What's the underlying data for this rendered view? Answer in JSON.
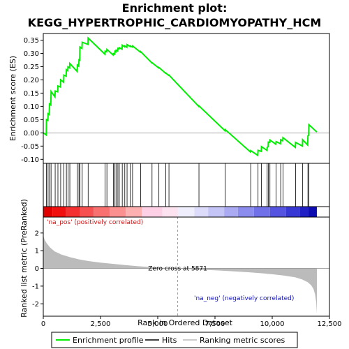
{
  "chart_data": {
    "type": "line",
    "title_line1": "Enrichment plot:",
    "title_line2": "KEGG_HYPERTROPHIC_CARDIOMYOPATHY_HCM",
    "ylabel_top": "Enrichment score (ES)",
    "ylabel_bottom": "Ranked list metric (PreRanked)",
    "xlabel": "Rank in Ordered Dataset",
    "xlim": [
      0,
      12500
    ],
    "x_ticks": [
      0,
      2500,
      5000,
      7500,
      10000,
      12500
    ],
    "x_tick_labels": [
      "0",
      "2,500",
      "5,000",
      "7,500",
      "10,000",
      "12,500"
    ],
    "es_ylim": [
      -0.115,
      0.375
    ],
    "es_ticks": [
      -0.1,
      -0.05,
      0.0,
      0.05,
      0.1,
      0.15,
      0.2,
      0.25,
      0.3,
      0.35
    ],
    "es_tick_labels": [
      "-0.10",
      "-0.05",
      "0.00",
      "0.05",
      "0.10",
      "0.15",
      "0.20",
      "0.25",
      "0.30",
      "0.35"
    ],
    "metric_ylim": [
      -2.7,
      2.9
    ],
    "metric_ticks": [
      -2,
      -1,
      0,
      1,
      2
    ],
    "metric_tick_labels": [
      "-2",
      "-1",
      "0",
      "1",
      "2"
    ],
    "zero_cross_rank": 5871,
    "zero_cross_label": "Zero cross at 5871",
    "pos_label": "'na_pos' (positively correlated)",
    "neg_label": "'na_neg' (negatively correlated)",
    "n_genes": 11950,
    "hits": [
      140,
      210,
      270,
      340,
      520,
      640,
      760,
      900,
      1010,
      1080,
      1160,
      1490,
      1560,
      1600,
      1700,
      1960,
      2700,
      2780,
      3060,
      3130,
      3180,
      3260,
      3320,
      3450,
      3560,
      3660,
      3800,
      3900,
      4250,
      4750,
      5050,
      5350,
      5490,
      6800,
      7950,
      9060,
      9380,
      9530,
      9780,
      9830,
      9900,
      10170,
      10370,
      10470,
      11020,
      11330,
      11560,
      11600
    ],
    "es_points": [
      [
        0,
        0.0
      ],
      [
        130,
        -0.008
      ],
      [
        140,
        0.05
      ],
      [
        200,
        0.047
      ],
      [
        210,
        0.072
      ],
      [
        260,
        0.069
      ],
      [
        270,
        0.109
      ],
      [
        330,
        0.105
      ],
      [
        340,
        0.156
      ],
      [
        510,
        0.136
      ],
      [
        520,
        0.158
      ],
      [
        630,
        0.155
      ],
      [
        640,
        0.177
      ],
      [
        750,
        0.173
      ],
      [
        760,
        0.2
      ],
      [
        890,
        0.191
      ],
      [
        900,
        0.218
      ],
      [
        1000,
        0.214
      ],
      [
        1010,
        0.238
      ],
      [
        1070,
        0.234
      ],
      [
        1080,
        0.249
      ],
      [
        1150,
        0.245
      ],
      [
        1160,
        0.262
      ],
      [
        1480,
        0.232
      ],
      [
        1490,
        0.256
      ],
      [
        1550,
        0.252
      ],
      [
        1560,
        0.276
      ],
      [
        1590,
        0.275
      ],
      [
        1600,
        0.324
      ],
      [
        1690,
        0.319
      ],
      [
        1700,
        0.342
      ],
      [
        1950,
        0.334
      ],
      [
        1960,
        0.358
      ],
      [
        2690,
        0.297
      ],
      [
        2700,
        0.308
      ],
      [
        2770,
        0.306
      ],
      [
        2780,
        0.315
      ],
      [
        3050,
        0.294
      ],
      [
        3060,
        0.299
      ],
      [
        3120,
        0.297
      ],
      [
        3130,
        0.308
      ],
      [
        3170,
        0.306
      ],
      [
        3180,
        0.312
      ],
      [
        3250,
        0.309
      ],
      [
        3260,
        0.319
      ],
      [
        3310,
        0.317
      ],
      [
        3320,
        0.321
      ],
      [
        3440,
        0.316
      ],
      [
        3450,
        0.331
      ],
      [
        3550,
        0.325
      ],
      [
        3560,
        0.328
      ],
      [
        3650,
        0.323
      ],
      [
        3660,
        0.333
      ],
      [
        3790,
        0.326
      ],
      [
        3800,
        0.328
      ],
      [
        3890,
        0.324
      ],
      [
        3900,
        0.328
      ],
      [
        4240,
        0.305
      ],
      [
        4250,
        0.307
      ],
      [
        4740,
        0.264
      ],
      [
        4750,
        0.265
      ],
      [
        5040,
        0.245
      ],
      [
        5050,
        0.247
      ],
      [
        5340,
        0.225
      ],
      [
        5350,
        0.226
      ],
      [
        5480,
        0.217
      ],
      [
        5490,
        0.218
      ],
      [
        6790,
        0.1
      ],
      [
        6800,
        0.102
      ],
      [
        7940,
        0.008
      ],
      [
        7950,
        0.012
      ],
      [
        9050,
        -0.072
      ],
      [
        9060,
        -0.067
      ],
      [
        9370,
        -0.085
      ],
      [
        9380,
        -0.066
      ],
      [
        9520,
        -0.07
      ],
      [
        9530,
        -0.052
      ],
      [
        9770,
        -0.066
      ],
      [
        9780,
        -0.055
      ],
      [
        9820,
        -0.052
      ],
      [
        9830,
        -0.035
      ],
      [
        9890,
        -0.036
      ],
      [
        9900,
        -0.027
      ],
      [
        10160,
        -0.043
      ],
      [
        10170,
        -0.033
      ],
      [
        10360,
        -0.041
      ],
      [
        10370,
        -0.026
      ],
      [
        10460,
        -0.03
      ],
      [
        10470,
        -0.018
      ],
      [
        11010,
        -0.055
      ],
      [
        11020,
        -0.036
      ],
      [
        11320,
        -0.05
      ],
      [
        11330,
        -0.026
      ],
      [
        11550,
        -0.046
      ],
      [
        11560,
        -0.011
      ],
      [
        11590,
        -0.009
      ],
      [
        11600,
        0.031
      ],
      [
        11950,
        0.003
      ]
    ],
    "metric_points": [
      [
        0,
        1.85
      ],
      [
        60,
        1.62
      ],
      [
        150,
        1.42
      ],
      [
        300,
        1.18
      ],
      [
        500,
        0.96
      ],
      [
        800,
        0.78
      ],
      [
        1200,
        0.62
      ],
      [
        1600,
        0.5
      ],
      [
        2000,
        0.41
      ],
      [
        2500,
        0.33
      ],
      [
        3000,
        0.26
      ],
      [
        3500,
        0.2
      ],
      [
        4000,
        0.14
      ],
      [
        4500,
        0.09
      ],
      [
        5000,
        0.05
      ],
      [
        5871,
        0.0
      ],
      [
        6500,
        -0.05
      ],
      [
        7000,
        -0.08
      ],
      [
        7500,
        -0.11
      ],
      [
        8000,
        -0.14
      ],
      [
        8500,
        -0.18
      ],
      [
        9000,
        -0.22
      ],
      [
        9500,
        -0.27
      ],
      [
        10000,
        -0.33
      ],
      [
        10500,
        -0.4
      ],
      [
        11000,
        -0.5
      ],
      [
        11300,
        -0.62
      ],
      [
        11550,
        -0.78
      ],
      [
        11700,
        -0.95
      ],
      [
        11800,
        -1.15
      ],
      [
        11870,
        -1.45
      ],
      [
        11920,
        -1.9
      ],
      [
        11950,
        -2.55
      ]
    ],
    "heat_segments": [
      {
        "from": 0,
        "to": 400,
        "color": "#e00000"
      },
      {
        "from": 400,
        "to": 1000,
        "color": "#f01010"
      },
      {
        "from": 1000,
        "to": 1600,
        "color": "#f43030"
      },
      {
        "from": 1600,
        "to": 2200,
        "color": "#f65050"
      },
      {
        "from": 2200,
        "to": 2900,
        "color": "#f87070"
      },
      {
        "from": 2900,
        "to": 3600,
        "color": "#fa9090"
      },
      {
        "from": 3600,
        "to": 4300,
        "color": "#fcb0b0"
      },
      {
        "from": 4300,
        "to": 5200,
        "color": "#fdd0e6"
      },
      {
        "from": 5200,
        "to": 5871,
        "color": "#fde2f0"
      },
      {
        "from": 5871,
        "to": 6600,
        "color": "#eeeefc"
      },
      {
        "from": 6600,
        "to": 7200,
        "color": "#dcdcfa"
      },
      {
        "from": 7200,
        "to": 7900,
        "color": "#c4c4f6"
      },
      {
        "from": 7900,
        "to": 8500,
        "color": "#aaaaf2"
      },
      {
        "from": 8500,
        "to": 9200,
        "color": "#8c8cee"
      },
      {
        "from": 9200,
        "to": 9900,
        "color": "#7070e8"
      },
      {
        "from": 9900,
        "to": 10600,
        "color": "#5454e0"
      },
      {
        "from": 10600,
        "to": 11200,
        "color": "#3838d4"
      },
      {
        "from": 11200,
        "to": 11600,
        "color": "#2020c4"
      },
      {
        "from": 11600,
        "to": 11950,
        "color": "#0c0cb0"
      }
    ],
    "legend": [
      {
        "label": "Enrichment profile",
        "color": "#00ee00"
      },
      {
        "label": "Hits",
        "color": "#000000"
      },
      {
        "label": "Ranking metric scores",
        "color": "#bbbbbb"
      }
    ],
    "colors": {
      "es_line": "#00ee00",
      "metric_fill": "#bbbbbb",
      "pos_text": "#d01010",
      "neg_text": "#1010c0"
    }
  }
}
